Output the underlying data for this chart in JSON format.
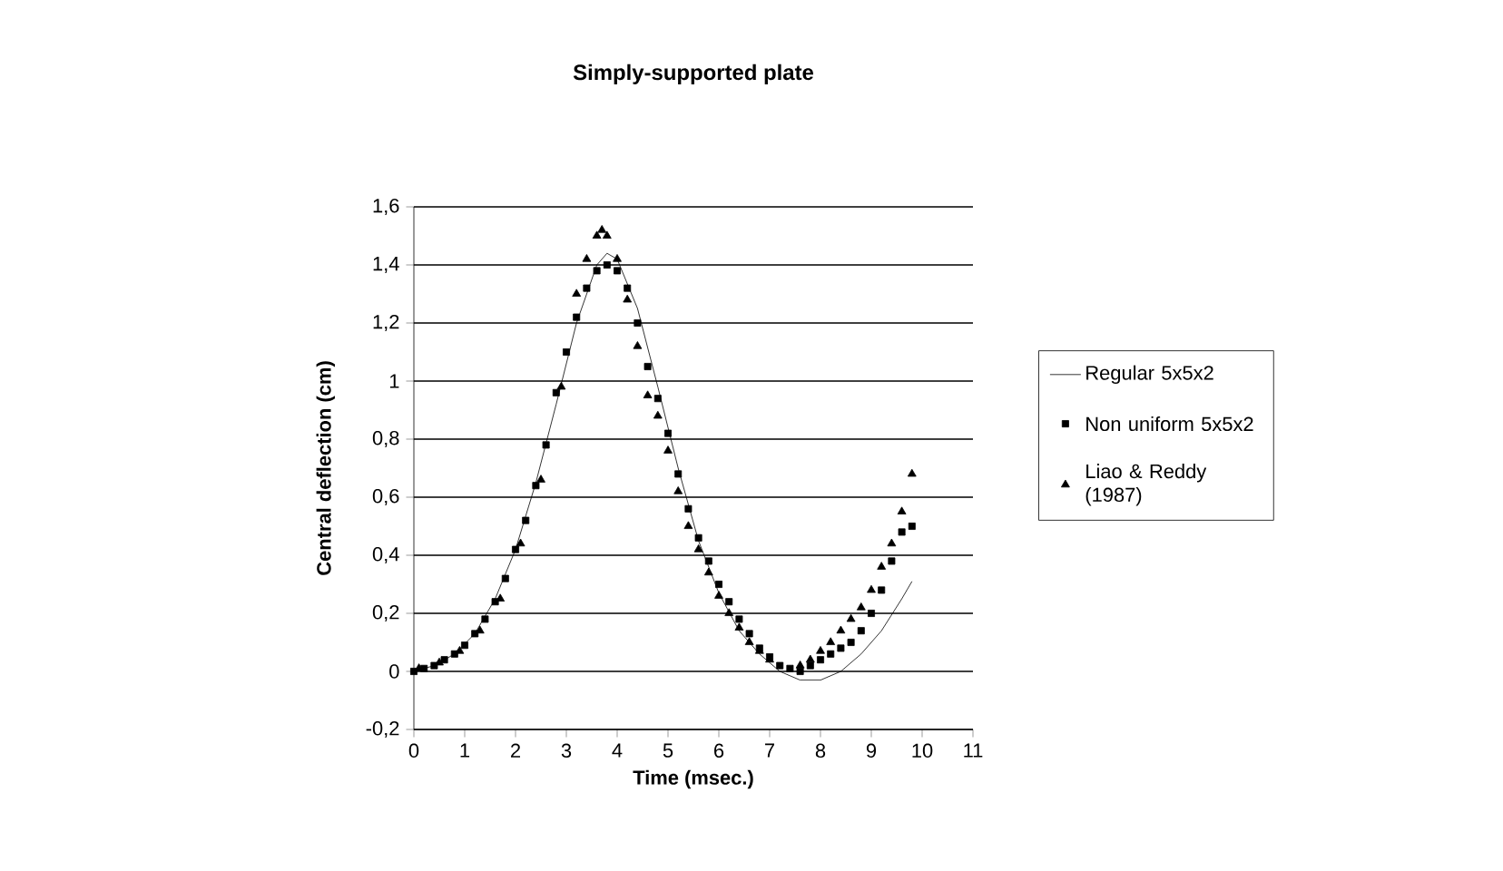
{
  "chart_data": {
    "type": "line",
    "title": "Simply-supported plate",
    "xlabel": "Time (msec.)",
    "ylabel": "Central deflection (cm)",
    "xlim": [
      0,
      11
    ],
    "xticks": [
      0,
      1,
      2,
      3,
      4,
      5,
      6,
      7,
      8,
      9,
      10,
      11
    ],
    "ylim": [
      -0.2,
      1.6
    ],
    "yticks": [
      {
        "value": -0.2,
        "label": "-0,2"
      },
      {
        "value": 0,
        "label": "0"
      },
      {
        "value": 0.2,
        "label": "0,2"
      },
      {
        "value": 0.4,
        "label": "0,4"
      },
      {
        "value": 0.6,
        "label": "0,6"
      },
      {
        "value": 0.8,
        "label": "0,8"
      },
      {
        "value": 1,
        "label": "1"
      },
      {
        "value": 1.2,
        "label": "1,2"
      },
      {
        "value": 1.4,
        "label": "1,4"
      },
      {
        "value": 1.6,
        "label": "1,6"
      }
    ],
    "grid": "y",
    "legend": "right",
    "series": [
      {
        "name": "Regular 5x5x2",
        "color": "#000000",
        "marker": "none",
        "line_style": "solid",
        "x": [
          0,
          0.4,
          0.8,
          1.2,
          1.6,
          2.0,
          2.4,
          2.8,
          3.2,
          3.6,
          3.8,
          4.0,
          4.4,
          4.8,
          5.2,
          5.6,
          6.0,
          6.4,
          6.8,
          7.2,
          7.6,
          8.0,
          8.4,
          8.8,
          9.2,
          9.6,
          9.8
        ],
        "values": [
          0,
          0.02,
          0.06,
          0.13,
          0.25,
          0.42,
          0.65,
          0.92,
          1.2,
          1.4,
          1.44,
          1.42,
          1.25,
          0.98,
          0.7,
          0.45,
          0.27,
          0.14,
          0.06,
          0.0,
          -0.03,
          -0.03,
          0.0,
          0.06,
          0.14,
          0.25,
          0.31
        ]
      },
      {
        "name": "Non uniform 5x5x2",
        "type": "scatter",
        "color": "#000000",
        "marker": "square",
        "x": [
          0,
          0.2,
          0.4,
          0.6,
          0.8,
          1.0,
          1.2,
          1.4,
          1.6,
          1.8,
          2.0,
          2.2,
          2.4,
          2.6,
          2.8,
          3.0,
          3.2,
          3.4,
          3.6,
          3.8,
          4.0,
          4.2,
          4.4,
          4.6,
          4.8,
          5.0,
          5.2,
          5.4,
          5.6,
          5.8,
          6.0,
          6.2,
          6.4,
          6.6,
          6.8,
          7.0,
          7.2,
          7.4,
          7.6,
          7.8,
          8.0,
          8.2,
          8.4,
          8.6,
          8.8,
          9.0,
          9.2,
          9.4,
          9.6,
          9.8
        ],
        "values": [
          0,
          0.01,
          0.02,
          0.04,
          0.06,
          0.09,
          0.13,
          0.18,
          0.24,
          0.32,
          0.42,
          0.52,
          0.64,
          0.78,
          0.96,
          1.1,
          1.22,
          1.32,
          1.38,
          1.4,
          1.38,
          1.32,
          1.2,
          1.05,
          0.94,
          0.82,
          0.68,
          0.56,
          0.46,
          0.38,
          0.3,
          0.24,
          0.18,
          0.13,
          0.08,
          0.05,
          0.02,
          0.01,
          0.0,
          0.02,
          0.04,
          0.06,
          0.08,
          0.1,
          0.14,
          0.2,
          0.28,
          0.38,
          0.48,
          0.5
        ]
      },
      {
        "name": "Liao & Reddy (1987)",
        "type": "scatter",
        "color": "#000000",
        "marker": "triangle",
        "x": [
          0.1,
          0.5,
          0.9,
          1.3,
          1.7,
          2.1,
          2.5,
          2.9,
          3.2,
          3.4,
          3.6,
          3.7,
          3.8,
          4.0,
          4.2,
          4.4,
          4.6,
          4.8,
          5.0,
          5.2,
          5.4,
          5.6,
          5.8,
          6.0,
          6.2,
          6.4,
          6.6,
          6.8,
          7.0,
          7.6,
          7.8,
          8.0,
          8.2,
          8.4,
          8.6,
          8.8,
          9.0,
          9.2,
          9.4,
          9.6,
          9.8
        ],
        "values": [
          0.01,
          0.03,
          0.07,
          0.14,
          0.25,
          0.44,
          0.66,
          0.98,
          1.3,
          1.42,
          1.5,
          1.52,
          1.5,
          1.42,
          1.28,
          1.12,
          0.95,
          0.88,
          0.76,
          0.62,
          0.5,
          0.42,
          0.34,
          0.26,
          0.2,
          0.15,
          0.1,
          0.07,
          0.04,
          0.02,
          0.04,
          0.07,
          0.1,
          0.14,
          0.18,
          0.22,
          0.28,
          0.36,
          0.44,
          0.55,
          0.68
        ]
      }
    ]
  }
}
